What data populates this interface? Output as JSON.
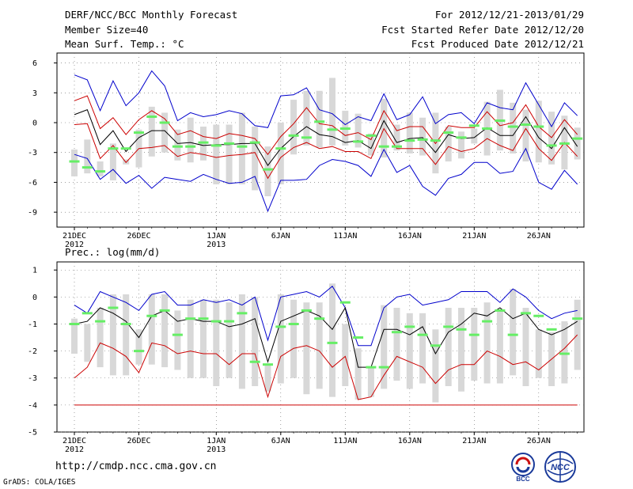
{
  "header": {
    "title": "DERF/NCC/BCC Monthly Forecast",
    "member_size": "Member Size=40",
    "variable": "Mean Surf. Temp.: °C",
    "fcst_period": "For 2012/12/21-2013/01/29",
    "start_date": "Fcst Started Refer Date 2012/12/20",
    "produced_date": "Fcst Produced Date 2012/12/21"
  },
  "footer": {
    "url": "http://cmdp.ncc.cma.gov.cn",
    "credit": "GrADS: COLA/IGES",
    "logo_bcc": "BCC",
    "logo_ncc": "NCC"
  },
  "colors": {
    "ens_max_min": "#0000cc",
    "spread_band": "#cc0000",
    "ens_mean": "#000000",
    "obs_marker": "#66ee66",
    "range_bar": "#d8d8d8"
  },
  "x_axis": {
    "days": 40,
    "labels": [
      {
        "day": 1,
        "line1": "21DEC",
        "line2": "2012"
      },
      {
        "day": 6,
        "line1": "26DEC",
        "line2": ""
      },
      {
        "day": 12,
        "line1": "1JAN",
        "line2": "2013"
      },
      {
        "day": 17,
        "line1": "6JAN",
        "line2": ""
      },
      {
        "day": 22,
        "line1": "11JAN",
        "line2": ""
      },
      {
        "day": 27,
        "line1": "16JAN",
        "line2": ""
      },
      {
        "day": 32,
        "line1": "21JAN",
        "line2": ""
      },
      {
        "day": 37,
        "line1": "26JAN",
        "line2": ""
      }
    ]
  },
  "chart_data": [
    {
      "type": "line",
      "title": "Mean Surf. Temp.: °C",
      "ylim": [
        -10.5,
        7
      ],
      "yticks": [
        -9,
        -6,
        -3,
        0,
        3,
        6
      ],
      "x": [
        1,
        2,
        3,
        4,
        5,
        6,
        7,
        8,
        9,
        10,
        11,
        12,
        13,
        14,
        15,
        16,
        17,
        18,
        19,
        20,
        21,
        22,
        23,
        24,
        25,
        26,
        27,
        28,
        29,
        30,
        31,
        32,
        33,
        34,
        35,
        36,
        37,
        38,
        39,
        40
      ],
      "series": [
        {
          "name": "ensemble max",
          "color": "#0000cc",
          "values": [
            4.8,
            4.3,
            1.2,
            4.2,
            1.7,
            3.0,
            5.2,
            3.7,
            0.2,
            1.0,
            0.6,
            0.8,
            1.2,
            0.9,
            -0.3,
            -0.5,
            2.7,
            2.8,
            3.5,
            1.3,
            0.9,
            -0.2,
            0.6,
            0.2,
            2.9,
            0.3,
            0.8,
            2.6,
            -0.1,
            0.8,
            1.0,
            -0.1,
            2.0,
            1.5,
            1.3,
            4.0,
            1.8,
            -0.4,
            2.0,
            0.7
          ]
        },
        {
          "name": "upper spread",
          "color": "#cc0000",
          "values": [
            2.2,
            2.7,
            -0.6,
            0.5,
            -1.2,
            0.3,
            1.2,
            0.4,
            -1.2,
            -0.8,
            -1.4,
            -1.6,
            -1.1,
            -1.3,
            -1.6,
            -3.2,
            -1.4,
            -0.1,
            1.5,
            -0.1,
            -0.3,
            -1.3,
            -1.0,
            -1.7,
            1.2,
            -0.8,
            -0.4,
            -0.4,
            -2.1,
            -0.3,
            -0.5,
            -0.5,
            1.1,
            -0.3,
            0.0,
            1.8,
            -0.4,
            -1.5,
            0.3,
            -1.2
          ]
        },
        {
          "name": "ensemble mean",
          "color": "#000000",
          "values": [
            0.8,
            1.3,
            -2.2,
            -0.8,
            -2.9,
            -1.5,
            -0.8,
            -0.8,
            -2.1,
            -2.0,
            -2.3,
            -2.2,
            -2.2,
            -2.1,
            -2.1,
            -4.3,
            -2.6,
            -1.4,
            -0.4,
            -1.2,
            -1.4,
            -2.0,
            -1.8,
            -2.6,
            0.2,
            -2.0,
            -1.6,
            -1.5,
            -3.0,
            -1.2,
            -1.6,
            -1.5,
            -0.5,
            -1.3,
            -1.3,
            0.6,
            -1.5,
            -2.6,
            -0.5,
            -2.4
          ]
        },
        {
          "name": "lower spread",
          "color": "#cc0000",
          "values": [
            -0.2,
            -0.1,
            -3.6,
            -2.3,
            -4.0,
            -2.6,
            -2.5,
            -2.3,
            -3.4,
            -3.0,
            -3.2,
            -3.5,
            -3.3,
            -3.2,
            -3.0,
            -5.6,
            -3.5,
            -2.5,
            -2.0,
            -2.6,
            -2.4,
            -2.9,
            -2.9,
            -3.6,
            -0.6,
            -2.6,
            -2.6,
            -2.6,
            -4.2,
            -2.4,
            -2.9,
            -2.6,
            -1.6,
            -2.3,
            -2.8,
            -0.6,
            -2.6,
            -3.8,
            -2.0,
            -3.4
          ]
        },
        {
          "name": "ensemble min",
          "color": "#0000cc",
          "values": [
            -3.2,
            -3.6,
            -5.7,
            -4.7,
            -6.1,
            -5.3,
            -6.6,
            -5.5,
            -5.7,
            -5.9,
            -5.2,
            -5.7,
            -6.1,
            -6.0,
            -5.4,
            -8.9,
            -5.8,
            -5.8,
            -5.7,
            -4.3,
            -3.7,
            -3.9,
            -4.3,
            -5.4,
            -2.7,
            -5.0,
            -4.3,
            -6.4,
            -7.3,
            -5.6,
            -5.2,
            -4.0,
            -4.0,
            -5.1,
            -4.9,
            -2.6,
            -6.0,
            -6.7,
            -4.8,
            -6.2
          ]
        },
        {
          "name": "range bar top",
          "color": "#d8d8d8",
          "values": [
            -2.7,
            -1.7,
            -3.9,
            -2.1,
            -3.7,
            -0.7,
            1.6,
            1.0,
            -0.7,
            0.5,
            -0.4,
            -0.2,
            -0.2,
            1.0,
            -0.4,
            -2.4,
            0.0,
            2.3,
            3.2,
            3.2,
            4.5,
            1.2,
            0.9,
            -1.1,
            2.4,
            -0.2,
            1.0,
            0.5,
            1.0,
            -0.4,
            -0.9,
            -0.6,
            2.1,
            3.3,
            2.0,
            1.3,
            2.2,
            1.1,
            0.7,
            -0.5
          ]
        },
        {
          "name": "range bar bottom",
          "color": "#d8d8d8",
          "values": [
            -5.4,
            -5.1,
            -5.4,
            -5.8,
            -4.2,
            -4.5,
            -3.4,
            -3.0,
            -3.8,
            -4.0,
            -3.8,
            -6.2,
            -6.2,
            -6.2,
            -6.8,
            -7.4,
            -6.2,
            -3.2,
            -2.3,
            -2.5,
            -2.3,
            -2.3,
            -2.5,
            -3.3,
            -3.5,
            -2.8,
            -3.1,
            -3.3,
            -5.1,
            -3.9,
            -3.6,
            -2.1,
            -3.3,
            -2.8,
            -3.1,
            -3.9,
            -4.0,
            -4.2,
            -4.7,
            -3.7
          ]
        },
        {
          "name": "observed",
          "color": "#66ee66",
          "values": [
            -3.9,
            -4.5,
            -4.9,
            -2.6,
            -2.6,
            -1.0,
            0.6,
            0.0,
            -2.4,
            -2.4,
            -2.0,
            -2.3,
            -2.1,
            -2.4,
            -2.0,
            -4.7,
            -2.6,
            -1.3,
            -1.5,
            0.1,
            -0.7,
            -0.6,
            -1.9,
            -1.3,
            -2.4,
            -2.4,
            -1.8,
            -1.7,
            -1.8,
            -1.0,
            -1.5,
            -0.3,
            -0.6,
            0.2,
            -0.4,
            -0.2,
            -0.4,
            -2.3,
            -2.1,
            -1.6
          ]
        }
      ]
    },
    {
      "type": "line",
      "title": "Prec.: log(mm/d)",
      "ylim": [
        -5,
        1.3
      ],
      "yticks": [
        -5,
        -4,
        -3,
        -2,
        -1,
        0,
        1
      ],
      "x": [
        1,
        2,
        3,
        4,
        5,
        6,
        7,
        8,
        9,
        10,
        11,
        12,
        13,
        14,
        15,
        16,
        17,
        18,
        19,
        20,
        21,
        22,
        23,
        24,
        25,
        26,
        27,
        28,
        29,
        30,
        31,
        32,
        33,
        34,
        35,
        36,
        37,
        38,
        39,
        40
      ],
      "series": [
        {
          "name": "ensemble max",
          "color": "#0000cc",
          "values": [
            -0.3,
            -0.6,
            0.2,
            0.0,
            -0.2,
            -0.5,
            0.1,
            0.2,
            -0.3,
            -0.3,
            -0.1,
            -0.2,
            -0.1,
            -0.3,
            0.0,
            -1.6,
            0.0,
            0.1,
            0.2,
            0.0,
            0.4,
            -0.4,
            -1.8,
            -1.8,
            -0.4,
            0.0,
            0.1,
            -0.3,
            -0.2,
            -0.1,
            0.2,
            0.2,
            0.2,
            -0.2,
            0.3,
            0.0,
            -0.5,
            -0.8,
            -0.6,
            -0.5
          ]
        },
        {
          "name": "ensemble mean",
          "color": "#000000",
          "values": [
            -1.0,
            -0.9,
            -0.4,
            -0.6,
            -0.9,
            -1.5,
            -0.7,
            -0.5,
            -0.9,
            -0.8,
            -0.9,
            -0.9,
            -1.1,
            -1.0,
            -0.8,
            -2.4,
            -0.9,
            -0.7,
            -0.5,
            -0.7,
            -1.2,
            -0.4,
            -2.6,
            -2.6,
            -1.2,
            -1.2,
            -1.4,
            -1.1,
            -2.1,
            -1.3,
            -1.0,
            -0.6,
            -0.7,
            -0.4,
            -0.8,
            -0.6,
            -1.2,
            -1.4,
            -1.2,
            -0.9
          ]
        },
        {
          "name": "lower spread",
          "color": "#cc0000",
          "values": [
            -3.0,
            -2.6,
            -1.7,
            -1.9,
            -2.2,
            -2.8,
            -1.7,
            -1.8,
            -2.1,
            -2.0,
            -2.1,
            -2.1,
            -2.5,
            -2.1,
            -2.1,
            -3.7,
            -2.2,
            -1.9,
            -1.8,
            -2.0,
            -2.6,
            -2.2,
            -3.8,
            -3.7,
            -2.9,
            -2.2,
            -2.4,
            -2.6,
            -3.2,
            -2.7,
            -2.5,
            -2.5,
            -2.0,
            -2.2,
            -2.5,
            -2.4,
            -2.7,
            -2.3,
            -1.9,
            -1.4
          ]
        },
        {
          "name": "lower bound",
          "color": "#cc0000",
          "values": [
            -4.0,
            -4.0,
            -4.0,
            -4.0,
            -4.0,
            -4.0,
            -4.0,
            -4.0,
            -4.0,
            -4.0,
            -4.0,
            -4.0,
            -4.0,
            -4.0,
            -4.0,
            -4.0,
            -4.0,
            -4.0,
            -4.0,
            -4.0,
            -4.0,
            -4.0,
            -4.0,
            -4.0,
            -4.0,
            -4.0,
            -4.0,
            -4.0,
            -4.0,
            -4.0,
            -4.0,
            -4.0,
            -4.0,
            -4.0,
            -4.0,
            -4.0,
            -4.0,
            -4.0,
            -4.0,
            -4.0
          ]
        },
        {
          "name": "range bar top",
          "color": "#d8d8d8",
          "values": [
            -0.8,
            -1.0,
            -0.4,
            0.1,
            0.1,
            -1.2,
            0.1,
            0.1,
            -0.5,
            -0.1,
            -0.1,
            -0.1,
            -0.2,
            0.1,
            0.0,
            -2.5,
            0.1,
            -0.1,
            -0.2,
            -0.2,
            0.5,
            -1.0,
            -1.9,
            -2.6,
            -0.3,
            -0.4,
            -0.6,
            -0.6,
            -1.2,
            -0.4,
            -0.4,
            -0.4,
            -0.2,
            -0.5,
            0.3,
            -0.4,
            -1.2,
            -1.3,
            -0.9,
            -0.1
          ]
        },
        {
          "name": "range bar bottom",
          "color": "#d8d8d8",
          "values": [
            -2.1,
            -2.4,
            -2.6,
            -2.9,
            -2.9,
            -2.5,
            -2.5,
            -2.6,
            -2.7,
            -3.0,
            -3.0,
            -3.3,
            -3.0,
            -3.4,
            -3.3,
            -3.5,
            -3.2,
            -3.0,
            -3.6,
            -3.4,
            -3.7,
            -3.3,
            -3.8,
            -3.7,
            -3.4,
            -3.1,
            -3.4,
            -3.2,
            -3.9,
            -3.3,
            -3.5,
            -3.1,
            -3.2,
            -3.2,
            -2.9,
            -3.3,
            -3.0,
            -3.3,
            -3.2,
            -2.7
          ]
        },
        {
          "name": "observed",
          "color": "#66ee66",
          "values": [
            -1.0,
            -0.6,
            -0.9,
            -0.4,
            -1.0,
            -2.0,
            -0.7,
            -0.5,
            -1.4,
            -0.8,
            -0.8,
            -0.9,
            -0.9,
            -0.6,
            -2.4,
            -2.5,
            -1.1,
            -1.0,
            -0.5,
            -0.8,
            -1.7,
            -0.2,
            -1.5,
            -2.6,
            -2.6,
            -1.3,
            -1.1,
            -1.4,
            -1.8,
            -1.1,
            -1.2,
            -1.4,
            -0.9,
            -0.5,
            -1.4,
            -0.6,
            -0.7,
            -1.2,
            -2.1,
            -0.8
          ]
        }
      ]
    }
  ]
}
